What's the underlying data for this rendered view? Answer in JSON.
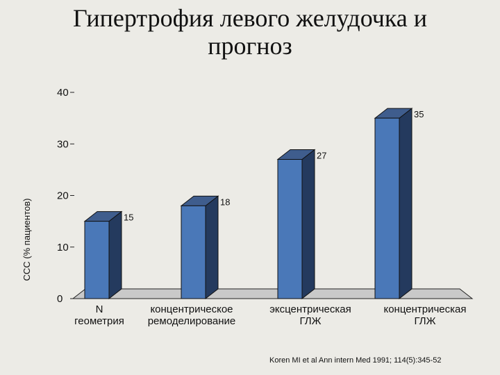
{
  "chart_data": {
    "type": "bar",
    "title_lines": [
      "Гипертрофия левого желудочка и",
      "прогноз"
    ],
    "ylabel": "ССС (% пациентов)",
    "ylim": [
      0,
      40
    ],
    "yticks": [
      "0",
      "10",
      "20",
      "30",
      "40"
    ],
    "categories": [
      [
        "N",
        "геометрия"
      ],
      [
        "концентрическое",
        "ремоделирование"
      ],
      [
        "эксцентрическая",
        "ГЛЖ"
      ],
      [
        "концентрическая",
        "ГЛЖ"
      ]
    ],
    "values": [
      15,
      18,
      27,
      35
    ],
    "value_labels": [
      "15",
      "18",
      "27",
      "35"
    ],
    "bar_color": "#4a78b8",
    "bar_side_color": "#243a5e",
    "bar_top_color": "#3f5d8d",
    "grid": false
  },
  "source": "Koren MI et al Ann intern Med 1991; 114(5):345-52"
}
